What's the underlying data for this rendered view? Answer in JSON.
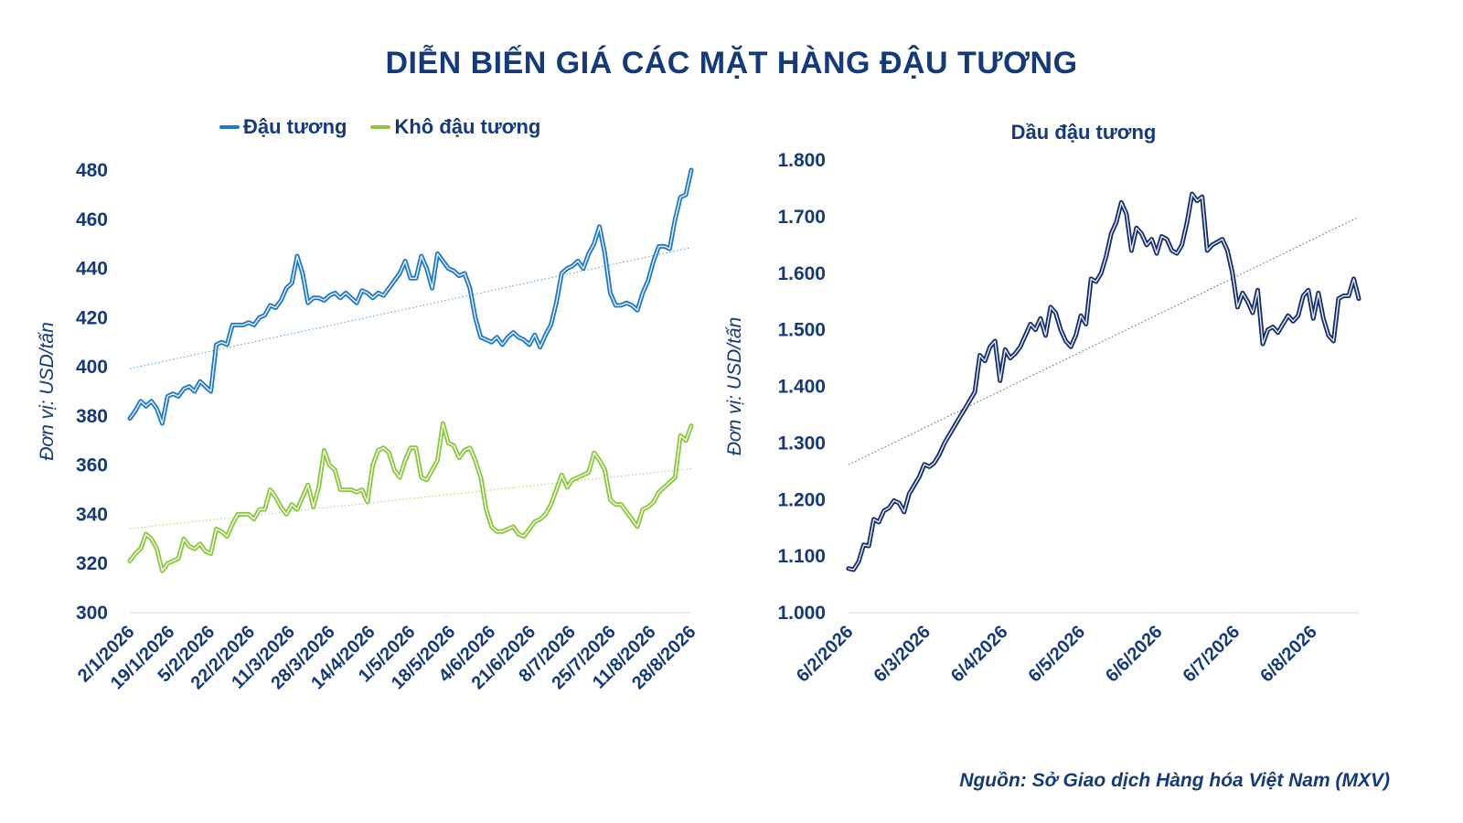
{
  "title": "DIỄN BIẾN GIÁ CÁC MẶT HÀNG ĐẬU TƯƠNG",
  "source": "Nguồn: Sở Giao dịch Hàng hóa Việt Nam (MXV)",
  "colors": {
    "title": "#143a7a",
    "soybean": "#1f78c8",
    "meal": "#8dc63f",
    "oil": "#132f6b",
    "trend": "#7fb3e0"
  },
  "chart_data": [
    {
      "type": "line",
      "title": "",
      "xlabel": "",
      "ylabel": "Đơn vị: USD/tấn",
      "ylim": [
        300,
        480
      ],
      "yticks": [
        300,
        320,
        340,
        360,
        380,
        400,
        420,
        440,
        460,
        480
      ],
      "x_ticks": [
        "2/1/2026",
        "19/1/2026",
        "5/2/2026",
        "22/2/2026",
        "11/3/2026",
        "28/3/2026",
        "14/4/2026",
        "1/5/2026",
        "18/5/2026",
        "4/6/2026",
        "21/6/2026",
        "8/7/2026",
        "25/7/2026",
        "11/8/2026",
        "28/8/2026"
      ],
      "legend_position": "top",
      "trendline": true,
      "series": [
        {
          "name": "Đậu tương",
          "color": "#1f78c8",
          "values": [
            379,
            382,
            386,
            384,
            386,
            383,
            377,
            388,
            389,
            388,
            391,
            392,
            390,
            394,
            392,
            390,
            409,
            410,
            409,
            417,
            417,
            417,
            418,
            417,
            420,
            421,
            425,
            424,
            427,
            432,
            434,
            445,
            438,
            426,
            428,
            428,
            427,
            429,
            430,
            428,
            430,
            428,
            426,
            431,
            430,
            428,
            430,
            429,
            432,
            435,
            438,
            443,
            436,
            436,
            445,
            440,
            432,
            446,
            443,
            440,
            439,
            437,
            438,
            432,
            420,
            412,
            411,
            410,
            412,
            409,
            412,
            414,
            412,
            411,
            409,
            413,
            408,
            413,
            417,
            426,
            438,
            440,
            441,
            443,
            440,
            446,
            450,
            457,
            446,
            430,
            425,
            425,
            426,
            425,
            423,
            430,
            435,
            443,
            449,
            449,
            448,
            460,
            469,
            470,
            480
          ]
        },
        {
          "name": "Khô đậu tương",
          "color": "#8dc63f",
          "values": [
            321,
            324,
            326,
            332,
            330,
            326,
            317,
            320,
            321,
            322,
            330,
            327,
            326,
            328,
            325,
            324,
            334,
            333,
            331,
            336,
            340,
            340,
            340,
            338,
            342,
            342,
            350,
            347,
            343,
            340,
            344,
            342,
            347,
            352,
            343,
            351,
            366,
            360,
            358,
            350,
            350,
            350,
            349,
            350,
            345,
            360,
            366,
            367,
            365,
            358,
            355,
            362,
            367,
            367,
            355,
            354,
            358,
            362,
            377,
            369,
            368,
            363,
            366,
            367,
            362,
            355,
            342,
            335,
            333,
            333,
            334,
            335,
            332,
            331,
            334,
            337,
            338,
            340,
            344,
            350,
            356,
            351,
            354,
            355,
            356,
            357,
            365,
            362,
            358,
            346,
            344,
            344,
            341,
            338,
            335,
            342,
            343,
            345,
            349,
            351,
            353,
            355,
            372,
            370,
            376
          ]
        }
      ]
    },
    {
      "type": "line",
      "title": "Dầu đậu tương",
      "xlabel": "",
      "ylabel": "Đơn vị: USD/tấn",
      "ylim": [
        1000,
        1800
      ],
      "yticks": [
        "1.000",
        "1.100",
        "1.200",
        "1.300",
        "1.400",
        "1.500",
        "1.600",
        "1.700",
        "1.800"
      ],
      "ytick_values": [
        1000,
        1100,
        1200,
        1300,
        1400,
        1500,
        1600,
        1700,
        1800
      ],
      "x_ticks": [
        "6/2/2026",
        "6/3/2026",
        "6/4/2026",
        "6/5/2026",
        "6/6/2026",
        "6/7/2026",
        "6/8/2026"
      ],
      "trendline": true,
      "series": [
        {
          "name": "Dầu đậu tương",
          "color": "#132f6b",
          "values": [
            1078,
            1076,
            1090,
            1120,
            1118,
            1165,
            1160,
            1180,
            1185,
            1198,
            1194,
            1178,
            1210,
            1225,
            1240,
            1262,
            1258,
            1265,
            1280,
            1300,
            1315,
            1330,
            1345,
            1360,
            1375,
            1390,
            1455,
            1445,
            1470,
            1480,
            1410,
            1465,
            1450,
            1458,
            1470,
            1490,
            1510,
            1500,
            1520,
            1490,
            1540,
            1530,
            1500,
            1480,
            1470,
            1490,
            1525,
            1510,
            1590,
            1585,
            1600,
            1630,
            1670,
            1690,
            1725,
            1705,
            1640,
            1680,
            1670,
            1650,
            1660,
            1635,
            1665,
            1660,
            1640,
            1635,
            1650,
            1690,
            1740,
            1728,
            1735,
            1640,
            1650,
            1655,
            1660,
            1640,
            1600,
            1540,
            1565,
            1550,
            1530,
            1570,
            1475,
            1500,
            1505,
            1495,
            1510,
            1525,
            1515,
            1525,
            1560,
            1570,
            1520,
            1565,
            1520,
            1490,
            1480,
            1555,
            1560,
            1560,
            1590,
            1555
          ]
        }
      ]
    }
  ]
}
